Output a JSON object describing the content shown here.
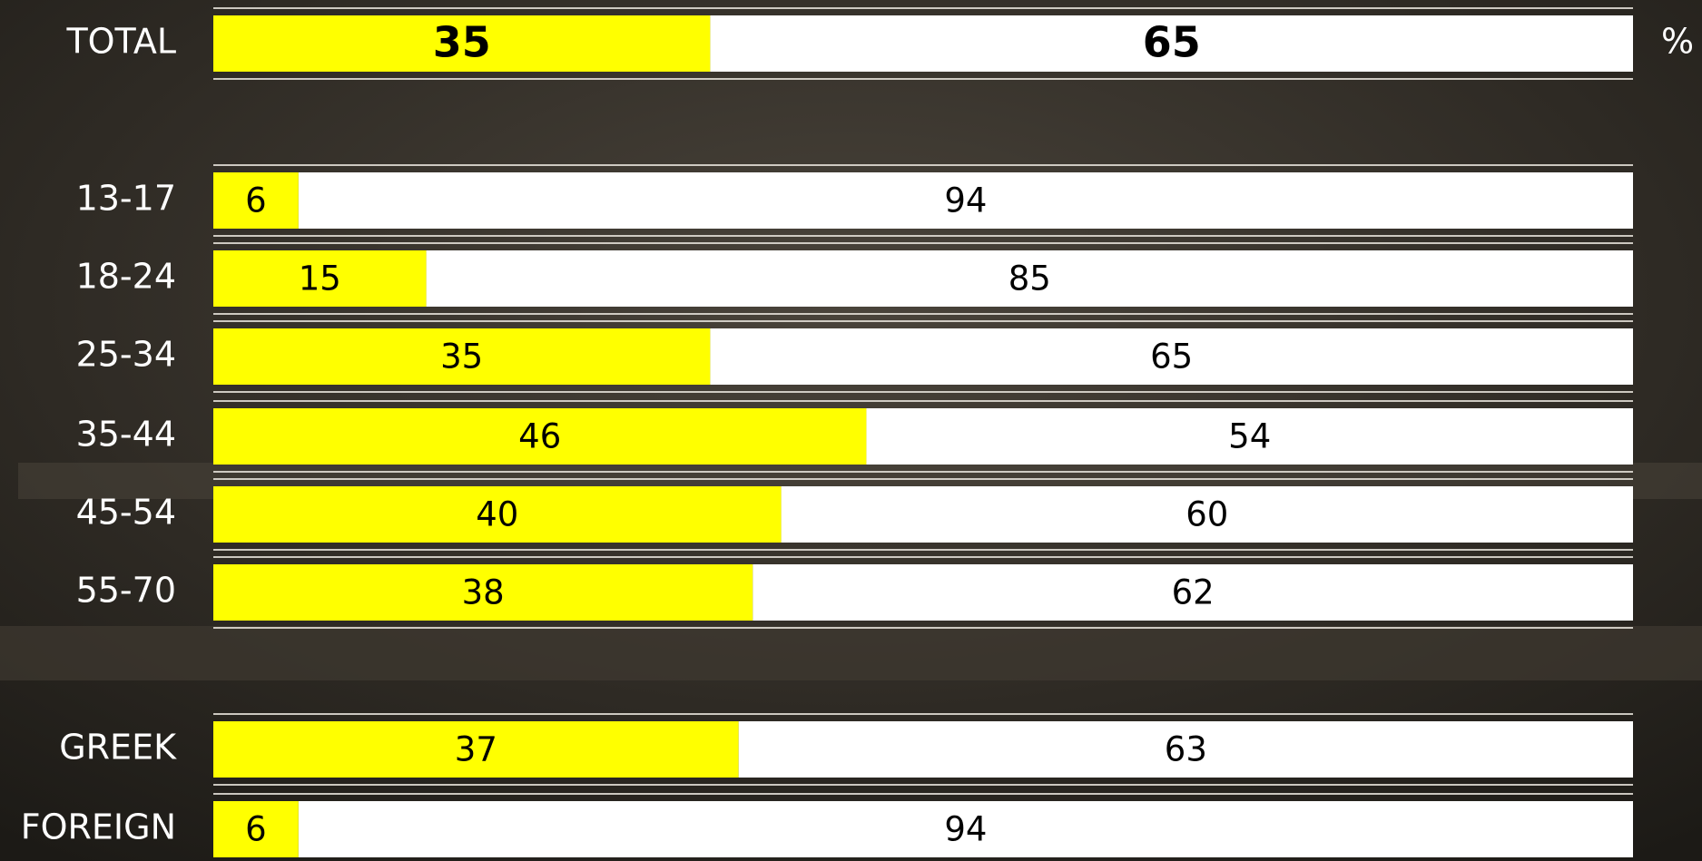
{
  "chart_data": {
    "type": "bar",
    "orientation": "horizontal",
    "stacked": true,
    "unit_label": "%",
    "categories": [
      "TOTAL",
      "13-17",
      "18-24",
      "25-34",
      "35-44",
      "45-54",
      "55-70",
      "GREEK",
      "FOREIGN"
    ],
    "xlim": [
      0,
      100
    ],
    "series": [
      {
        "color": "#ffff00",
        "values": [
          35,
          6,
          15,
          35,
          46,
          40,
          38,
          37,
          6
        ]
      },
      {
        "color": "#ffffff",
        "values": [
          65,
          94,
          85,
          65,
          54,
          60,
          62,
          63,
          94
        ]
      }
    ]
  }
}
